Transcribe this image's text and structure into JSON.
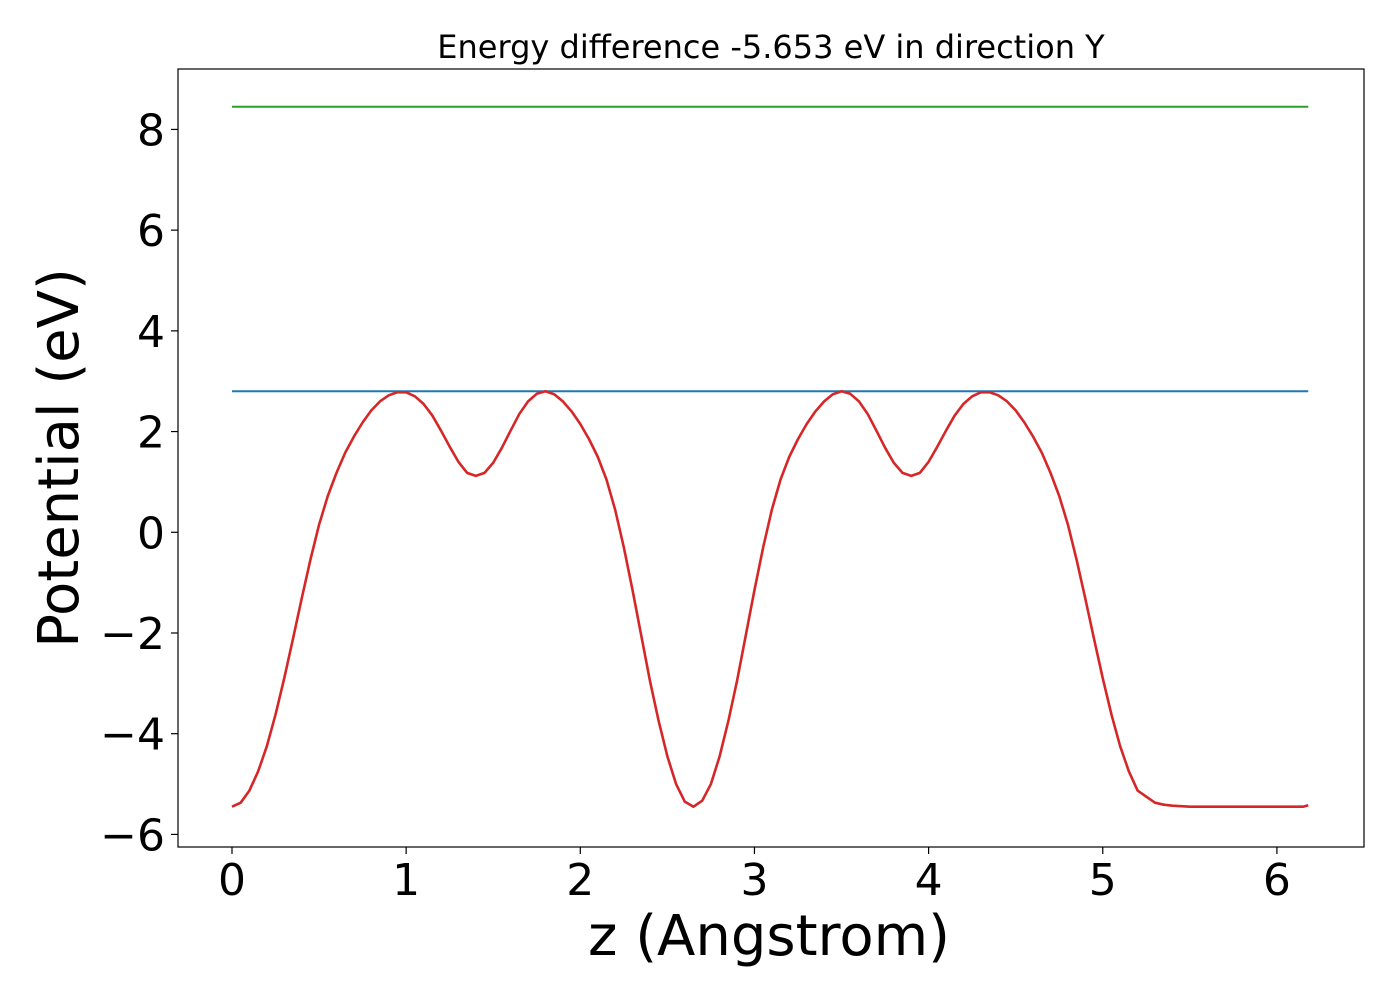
{
  "chart_data": {
    "type": "line",
    "title": "Energy difference -5.653 eV in direction Y",
    "xlabel": "z (Angstrom)",
    "ylabel": "Potential (eV)",
    "xlim": [
      -0.31,
      6.5
    ],
    "ylim": [
      -6.25,
      9.2
    ],
    "xticks": [
      "0",
      "1",
      "2",
      "3",
      "4",
      "5",
      "6"
    ],
    "yticks": [
      "−6",
      "−4",
      "−2",
      "0",
      "2",
      "4",
      "6",
      "8"
    ],
    "grid": false,
    "legend": "none",
    "series": [
      {
        "color": "#2ca02c",
        "x": [
          0,
          6.18
        ],
        "values": [
          8.45,
          8.45
        ]
      },
      {
        "color": "#1f77b4",
        "x": [
          0,
          6.18
        ],
        "values": [
          2.8,
          2.8
        ]
      },
      {
        "color": "#d62728",
        "x": [
          0.0,
          0.05,
          0.1,
          0.15,
          0.2,
          0.25,
          0.3,
          0.35,
          0.4,
          0.45,
          0.5,
          0.55,
          0.6,
          0.65,
          0.7,
          0.75,
          0.8,
          0.85,
          0.9,
          0.95,
          1.0,
          1.05,
          1.1,
          1.15,
          1.2,
          1.25,
          1.3,
          1.35,
          1.4,
          1.45,
          1.5,
          1.55,
          1.6,
          1.65,
          1.7,
          1.75,
          1.8,
          1.85,
          1.9,
          1.95,
          2.0,
          2.05,
          2.1,
          2.15,
          2.2,
          2.25,
          2.3,
          2.35,
          2.4,
          2.45,
          2.5,
          2.55,
          2.6,
          2.65,
          2.7,
          2.75,
          2.8,
          2.85,
          2.9,
          2.95,
          3.0,
          3.05,
          3.1,
          3.15,
          3.2,
          3.25,
          3.3,
          3.35,
          3.4,
          3.45,
          3.5,
          3.55,
          3.6,
          3.65,
          3.7,
          3.75,
          3.8,
          3.85,
          3.9,
          3.95,
          4.0,
          4.05,
          4.1,
          4.15,
          4.2,
          4.25,
          4.3,
          4.35,
          4.4,
          4.45,
          4.5,
          4.55,
          4.6,
          4.65,
          4.7,
          4.75,
          4.8,
          4.85,
          4.9,
          4.95,
          5.0,
          5.05,
          5.1,
          5.15,
          5.2,
          5.25,
          5.3,
          5.35,
          5.4,
          5.45,
          5.5,
          5.55,
          5.6,
          5.65,
          5.7,
          5.75,
          5.8,
          5.85,
          5.9,
          5.95,
          6.0,
          6.05,
          6.1,
          6.15,
          6.18
        ],
        "values": [
          -5.45,
          -5.37,
          -5.13,
          -4.75,
          -4.25,
          -3.62,
          -2.9,
          -2.12,
          -1.32,
          -0.55,
          0.15,
          0.72,
          1.18,
          1.58,
          1.9,
          2.18,
          2.42,
          2.6,
          2.72,
          2.78,
          2.78,
          2.7,
          2.55,
          2.32,
          2.02,
          1.7,
          1.4,
          1.18,
          1.12,
          1.18,
          1.38,
          1.68,
          2.02,
          2.35,
          2.6,
          2.75,
          2.8,
          2.74,
          2.6,
          2.4,
          2.15,
          1.85,
          1.5,
          1.05,
          0.45,
          -0.3,
          -1.15,
          -2.05,
          -2.95,
          -3.75,
          -4.45,
          -5.0,
          -5.35,
          -5.45,
          -5.33,
          -5.0,
          -4.45,
          -3.75,
          -2.95,
          -2.05,
          -1.15,
          -0.3,
          0.45,
          1.05,
          1.5,
          1.85,
          2.15,
          2.4,
          2.6,
          2.74,
          2.8,
          2.75,
          2.6,
          2.35,
          2.02,
          1.68,
          1.38,
          1.18,
          1.12,
          1.18,
          1.4,
          1.7,
          2.02,
          2.32,
          2.55,
          2.7,
          2.78,
          2.78,
          2.72,
          2.6,
          2.42,
          2.18,
          1.9,
          1.58,
          1.18,
          0.72,
          0.15,
          -0.55,
          -1.32,
          -2.12,
          -2.9,
          -3.62,
          -4.25,
          -4.75,
          -5.13,
          -5.25,
          -5.37,
          -5.41,
          -5.43,
          -5.44,
          -5.45,
          -5.45,
          -5.45,
          -5.45,
          -5.45,
          -5.45,
          -5.45,
          -5.45,
          -5.45,
          -5.45,
          -5.45,
          -5.45,
          -5.45,
          -5.45,
          -5.42
        ]
      }
    ]
  }
}
